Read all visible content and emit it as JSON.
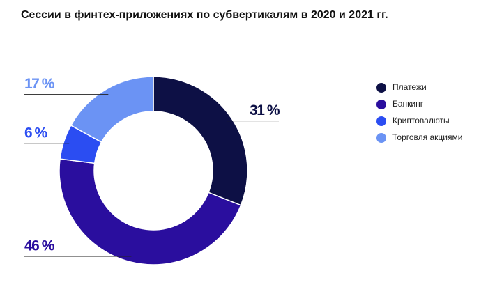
{
  "chart_data": {
    "type": "donut",
    "title": "Сессии в финтех-приложениях по субвертикалям в 2020 и 2021 гг.",
    "categories": [
      "Платежи",
      "Банкинг",
      "Криптовалюты",
      "Торговля акциями"
    ],
    "values": [
      31,
      46,
      6,
      17
    ],
    "value_labels": [
      "31 %",
      "46 %",
      "6 %",
      "17 %"
    ],
    "colors": [
      "#0d1045",
      "#2a0e9e",
      "#2b4df2",
      "#6b93f4"
    ],
    "legend": "right"
  }
}
